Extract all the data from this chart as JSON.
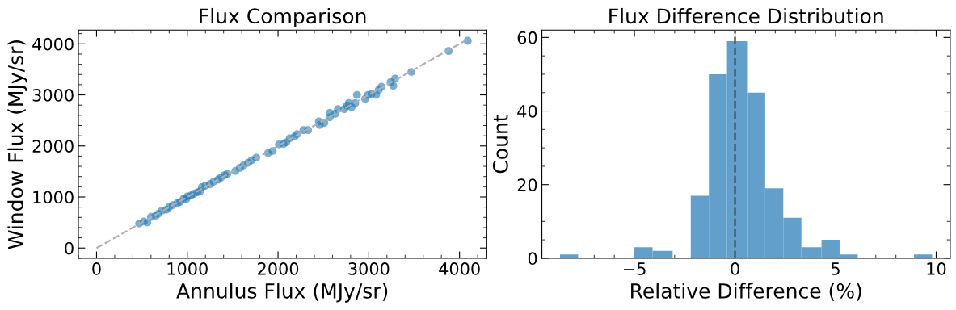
{
  "chart_data": [
    {
      "type": "scatter",
      "title": "Flux Comparison",
      "xlabel": "Annulus Flux (MJy/sr)",
      "ylabel": "Window Flux (MJy/sr)",
      "xlim": [
        -200,
        4300
      ],
      "ylim": [
        -200,
        4270
      ],
      "xticks": [
        0,
        1000,
        2000,
        3000,
        4000
      ],
      "yticks": [
        0,
        1000,
        2000,
        3000,
        4000
      ],
      "series": [
        {
          "type": "scatter",
          "color": "#1f77b4",
          "marker": "circle",
          "x": [
            470,
            520,
            560,
            600,
            650,
            680,
            720,
            770,
            800,
            840,
            890,
            920,
            960,
            990,
            1000,
            1040,
            1070,
            1110,
            1140,
            1160,
            1200,
            1250,
            1290,
            1340,
            1370,
            1410,
            1440,
            1530,
            1580,
            1620,
            1670,
            1710,
            1760,
            1890,
            1940,
            2010,
            2060,
            2090,
            2130,
            2180,
            2210,
            2280,
            2330,
            2450,
            2460,
            2510,
            2570,
            2570,
            2630,
            2660,
            2730,
            2760,
            2780,
            2810,
            2850,
            2870,
            2960,
            2990,
            3030,
            3080,
            3110,
            3140,
            3240,
            3270,
            3290,
            3470,
            3880,
            4090
          ],
          "values": [
            480,
            520,
            500,
            610,
            630,
            670,
            730,
            750,
            800,
            840,
            880,
            900,
            970,
            960,
            1010,
            1030,
            1060,
            1090,
            1110,
            1190,
            1220,
            1250,
            1300,
            1340,
            1380,
            1430,
            1450,
            1510,
            1570,
            1620,
            1670,
            1720,
            1770,
            1860,
            1900,
            2030,
            2040,
            2070,
            2150,
            2180,
            2230,
            2310,
            2310,
            2480,
            2410,
            2450,
            2560,
            2650,
            2630,
            2720,
            2720,
            2790,
            2840,
            2760,
            2840,
            3000,
            2920,
            3000,
            3020,
            3000,
            3100,
            3160,
            3250,
            3180,
            3320,
            3450,
            3860,
            4060
          ]
        },
        {
          "type": "line",
          "color": "#b0b0b0",
          "line_style": "dashed",
          "marker": "none",
          "x": [
            0,
            4090
          ],
          "values": [
            0,
            4090
          ]
        }
      ]
    },
    {
      "type": "histogram",
      "title": "Flux Difference Distribution",
      "xlabel": "Relative Difference (%)",
      "ylabel": "Count",
      "xlim": [
        -9.6,
        10.7
      ],
      "ylim": [
        0,
        62
      ],
      "xticks": [
        {
          "value": -5,
          "label": "−5"
        },
        0,
        5,
        10
      ],
      "yticks": [
        0,
        20,
        40,
        60
      ],
      "color": "#62a0cb",
      "bins": [
        -8.7,
        -7.8,
        -5.0,
        -4.1,
        -3.1,
        -2.2,
        -1.3,
        -0.4,
        0.6,
        1.5,
        2.4,
        3.3,
        4.3,
        5.2,
        6.1,
        8.9,
        9.8
      ],
      "values": [
        1,
        0,
        3,
        2,
        0,
        17,
        50,
        59,
        45,
        19,
        11,
        3,
        5,
        1,
        0,
        1
      ],
      "ref_lines": [
        {
          "axis": "x",
          "value": 0,
          "color": "#555555",
          "line_style": "dashed"
        }
      ]
    }
  ]
}
